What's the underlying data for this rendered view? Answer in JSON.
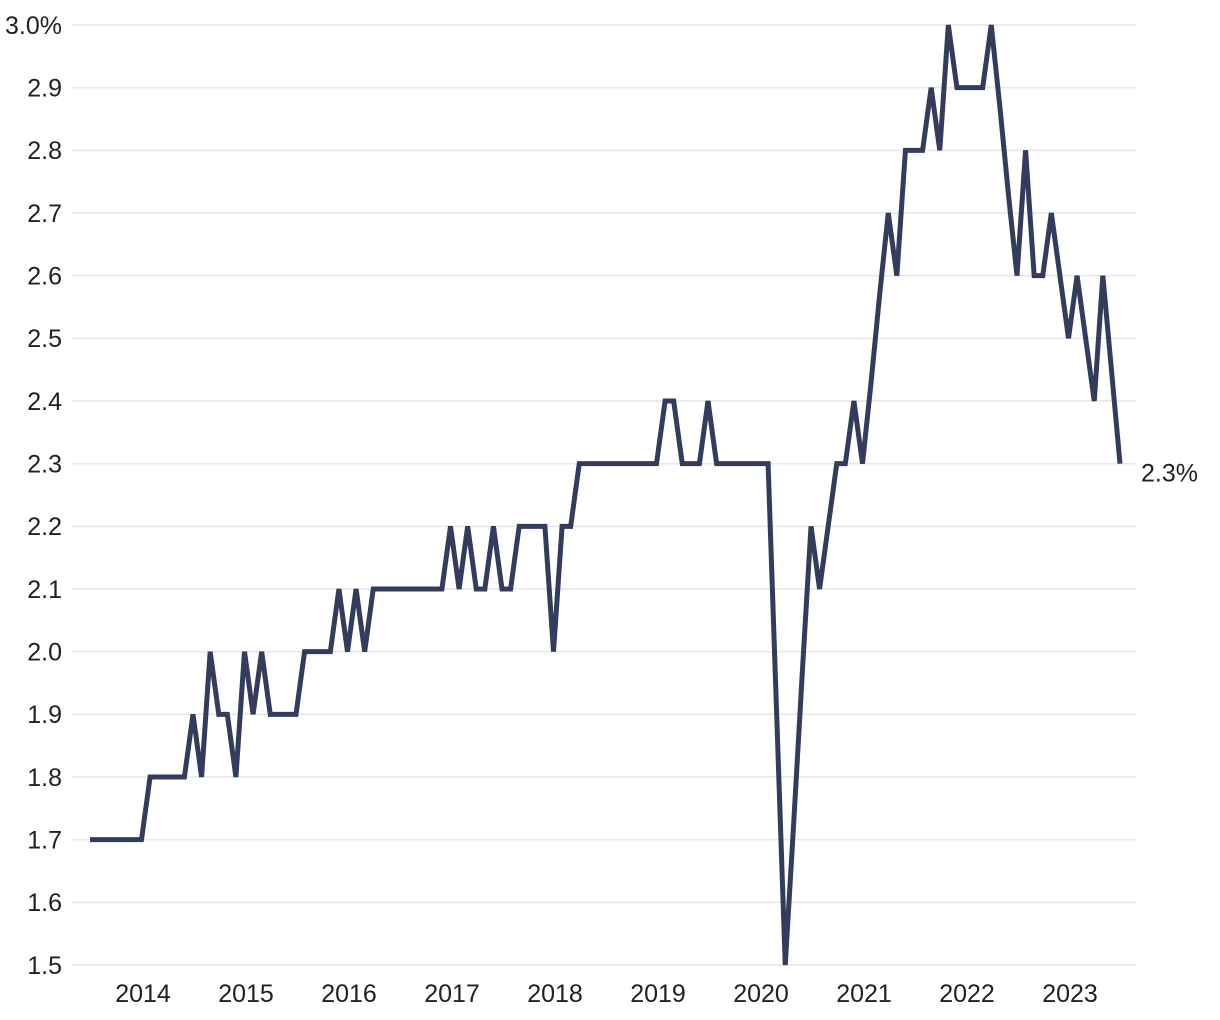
{
  "chart_data": {
    "type": "line",
    "title": "",
    "unit": "%",
    "grid": "horizontal-only",
    "legend_position": "none",
    "line_color": "#333c5d",
    "grid_color": "#e8e8e8",
    "label_color": "#212121",
    "background": "#ffffff",
    "y_axis": {
      "min": 1.5,
      "max": 3.0,
      "step": 0.1,
      "tick_labels_top_to_bottom": [
        "3.0%",
        "2.9",
        "2.8",
        "2.7",
        "2.6",
        "2.5",
        "2.4",
        "2.3",
        "2.2",
        "2.1",
        "2.0",
        "1.9",
        "1.8",
        "1.7",
        "1.6",
        "1.5"
      ]
    },
    "x_axis": {
      "tick_labels": [
        "2014",
        "2015",
        "2016",
        "2017",
        "2018",
        "2019",
        "2020",
        "2021",
        "2022",
        "2023"
      ]
    },
    "end_annotation": "2.3%",
    "values": [
      1.7,
      1.7,
      1.7,
      1.7,
      1.7,
      1.7,
      1.7,
      1.8,
      1.8,
      1.8,
      1.8,
      1.8,
      1.9,
      1.8,
      2.0,
      1.9,
      1.9,
      1.8,
      2.0,
      1.9,
      2.0,
      1.9,
      1.9,
      1.9,
      1.9,
      2.0,
      2.0,
      2.0,
      2.0,
      2.1,
      2.0,
      2.1,
      2.0,
      2.1,
      2.1,
      2.1,
      2.1,
      2.1,
      2.1,
      2.1,
      2.1,
      2.1,
      2.2,
      2.1,
      2.2,
      2.1,
      2.1,
      2.2,
      2.1,
      2.1,
      2.2,
      2.2,
      2.2,
      2.2,
      2.0,
      2.2,
      2.2,
      2.3,
      2.3,
      2.3,
      2.3,
      2.3,
      2.3,
      2.3,
      2.3,
      2.3,
      2.3,
      2.4,
      2.4,
      2.3,
      2.3,
      2.3,
      2.4,
      2.3,
      2.3,
      2.3,
      2.3,
      2.3,
      2.3,
      2.3,
      1.9,
      1.5,
      1.73,
      1.97,
      2.2,
      2.1,
      2.2,
      2.3,
      2.3,
      2.4,
      2.3,
      2.43,
      2.57,
      2.7,
      2.6,
      2.8,
      2.8,
      2.8,
      2.9,
      2.8,
      3.0,
      2.9,
      2.9,
      2.9,
      2.9,
      3.0,
      2.87,
      2.73,
      2.6,
      2.8,
      2.6,
      2.6,
      2.7,
      2.6,
      2.5,
      2.6,
      2.5,
      2.4,
      2.6,
      2.45,
      2.3
    ]
  }
}
